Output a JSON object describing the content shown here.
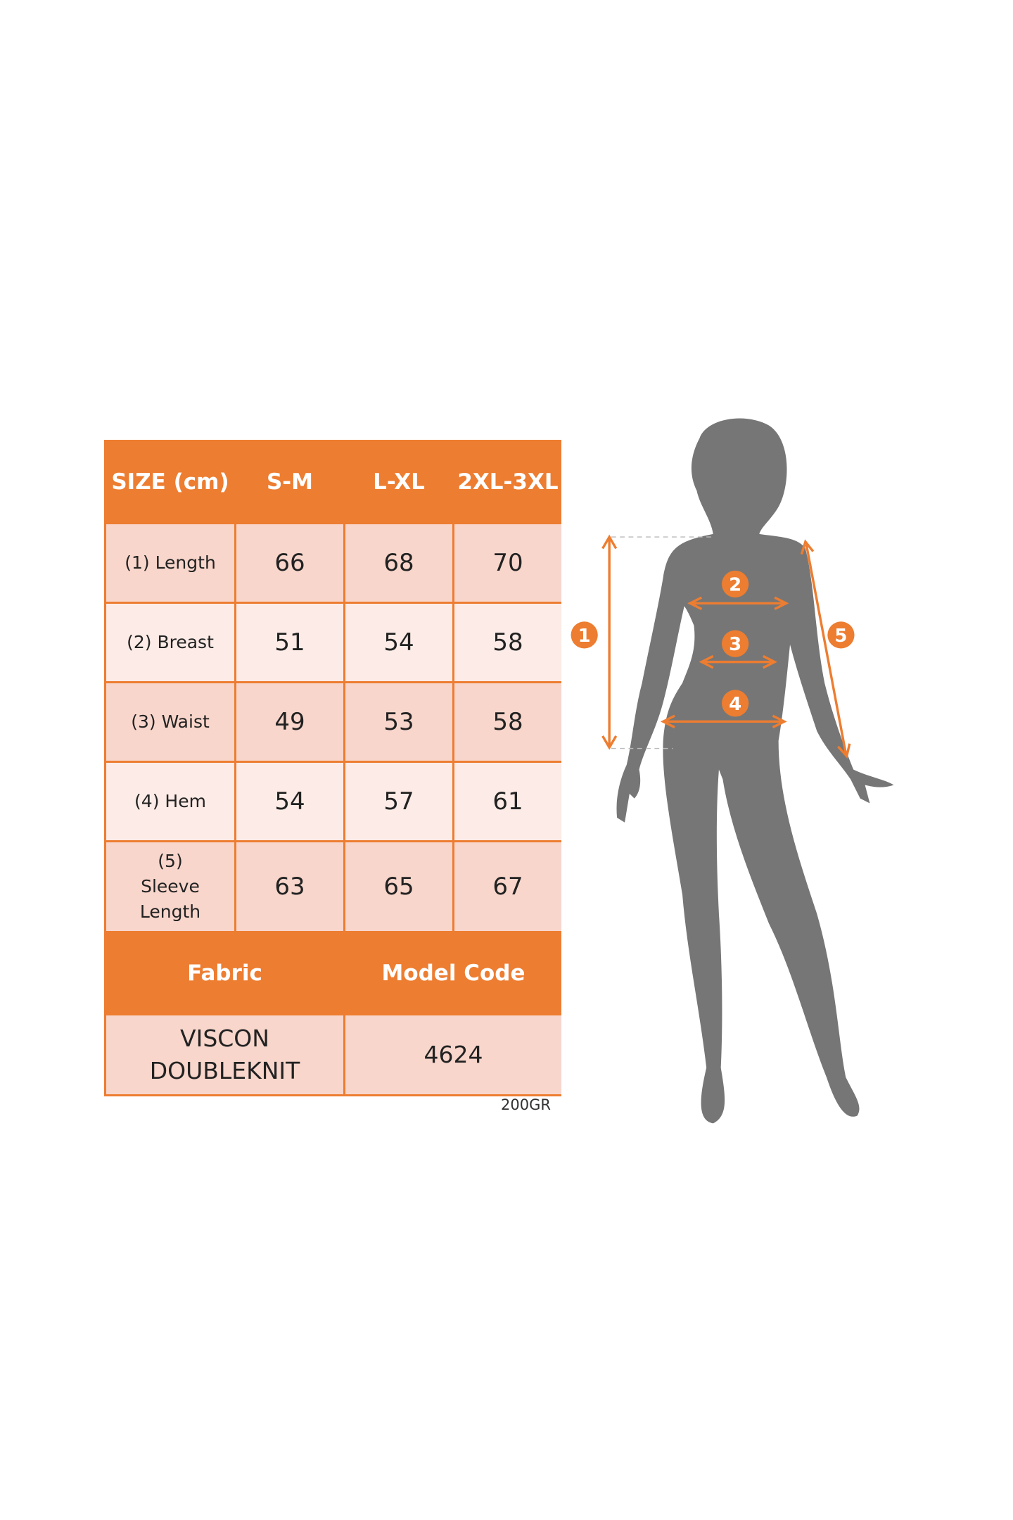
{
  "colors": {
    "accent": "#ed7d31",
    "silhouette": "#767676",
    "row_dark": "#f8d6cb",
    "row_light": "#fcebe6"
  },
  "table": {
    "headers": [
      "SIZE (cm)",
      "S-M",
      "L-XL",
      "2XL-3XL"
    ],
    "rows": [
      {
        "label": "(1) Length",
        "values": [
          "66",
          "68",
          "70"
        ]
      },
      {
        "label": "(2) Breast",
        "values": [
          "51",
          "54",
          "58"
        ]
      },
      {
        "label": "(3) Waist",
        "values": [
          "49",
          "53",
          "58"
        ]
      },
      {
        "label": "(4) Hem",
        "values": [
          "54",
          "57",
          "61"
        ]
      },
      {
        "label": "(5) Sleeve Length",
        "values": [
          "63",
          "65",
          "67"
        ]
      }
    ],
    "footer_headers": [
      "Fabric",
      "Model Code"
    ],
    "footer_values": [
      "VISCON DOUBLEKNIT",
      "4624"
    ]
  },
  "note": "200GR",
  "figure": {
    "markers": [
      "1",
      "2",
      "3",
      "4",
      "5"
    ]
  }
}
